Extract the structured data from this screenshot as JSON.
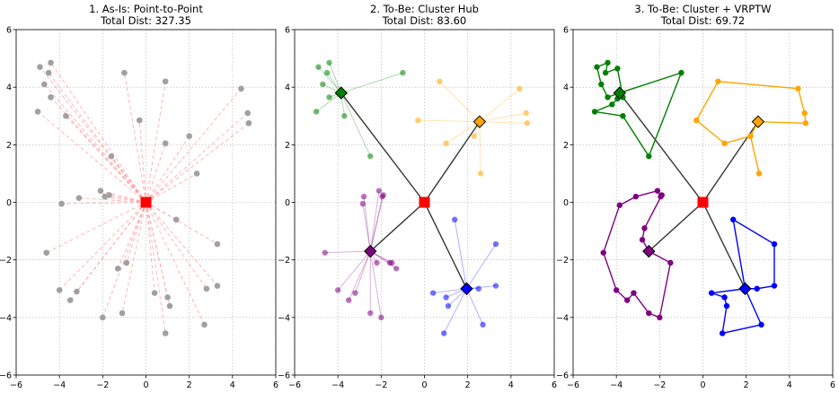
{
  "chart_data": [
    {
      "type": "scatter",
      "title": "1. As-Is: Point-to-Point",
      "subtitle": "Total Dist: 327.35",
      "xlabel": "",
      "ylabel": "",
      "xlim": [
        -6,
        6
      ],
      "ylim": [
        -6,
        6
      ],
      "xticks": [
        -6,
        -4,
        -2,
        0,
        2,
        4,
        6
      ],
      "yticks": [
        -6,
        -4,
        -2,
        0,
        2,
        4,
        6
      ],
      "grid": true,
      "depot": {
        "x": 0,
        "y": 0
      },
      "customers": [
        [
          -4.9,
          4.7
        ],
        [
          -4.4,
          4.85
        ],
        [
          -4.5,
          4.5
        ],
        [
          -4.7,
          4.1
        ],
        [
          -4.4,
          3.65
        ],
        [
          -5.0,
          3.15
        ],
        [
          -3.7,
          3.0
        ],
        [
          -1.0,
          4.5
        ],
        [
          0.9,
          4.2
        ],
        [
          -0.3,
          2.85
        ],
        [
          0.9,
          2.05
        ],
        [
          -1.6,
          1.6
        ],
        [
          4.4,
          3.95
        ],
        [
          4.7,
          3.1
        ],
        [
          4.75,
          2.75
        ],
        [
          2.0,
          2.3
        ],
        [
          2.35,
          1.0
        ],
        [
          -1.7,
          0.25
        ],
        [
          -1.9,
          0.2
        ],
        [
          -2.1,
          0.4
        ],
        [
          -3.1,
          0.15
        ],
        [
          -3.9,
          -0.05
        ],
        [
          -4.6,
          -1.75
        ],
        [
          -4.0,
          -3.05
        ],
        [
          -3.2,
          -3.1
        ],
        [
          -3.5,
          -3.4
        ],
        [
          -1.3,
          -2.3
        ],
        [
          -0.9,
          -2.1
        ],
        [
          -1.1,
          -3.85
        ],
        [
          -2.0,
          -4.0
        ],
        [
          1.4,
          -0.6
        ],
        [
          3.3,
          -1.45
        ],
        [
          3.3,
          -2.9
        ],
        [
          2.8,
          -3.0
        ],
        [
          0.4,
          -3.15
        ],
        [
          1.0,
          -3.3
        ],
        [
          1.1,
          -3.6
        ],
        [
          2.7,
          -4.25
        ],
        [
          0.9,
          -4.55
        ]
      ],
      "colors": {
        "customer": "#a0a0a0",
        "line": "#ff9999",
        "depot": "#ff0000"
      }
    },
    {
      "type": "scatter",
      "title": "2. To-Be: Cluster Hub",
      "subtitle": "Total Dist: 83.60",
      "xlabel": "",
      "ylabel": "",
      "xlim": [
        -6,
        6
      ],
      "ylim": [
        -6,
        6
      ],
      "xticks": [
        -6,
        -4,
        -2,
        0,
        2,
        4,
        6
      ],
      "yticks": [
        -6,
        -4,
        -2,
        0,
        2,
        4,
        6
      ],
      "grid": true,
      "depot": {
        "x": 0,
        "y": 0
      },
      "clusters": [
        {
          "color": "#008000",
          "hub": [
            -3.85,
            3.8
          ],
          "points": [
            [
              -4.9,
              4.7
            ],
            [
              -4.4,
              4.85
            ],
            [
              -4.5,
              4.5
            ],
            [
              -4.7,
              4.1
            ],
            [
              -4.4,
              3.65
            ],
            [
              -5.0,
              3.15
            ],
            [
              -3.7,
              3.0
            ],
            [
              -1.0,
              4.5
            ],
            [
              -2.5,
              1.6
            ]
          ]
        },
        {
          "color": "#ffa500",
          "hub": [
            2.55,
            2.8
          ],
          "points": [
            [
              0.7,
              4.2
            ],
            [
              4.4,
              3.95
            ],
            [
              4.7,
              3.1
            ],
            [
              4.75,
              2.75
            ],
            [
              -0.3,
              2.85
            ],
            [
              1.0,
              2.05
            ],
            [
              2.3,
              2.3
            ],
            [
              2.6,
              1.0
            ]
          ]
        },
        {
          "color": "#800080",
          "hub": [
            -2.5,
            -1.7
          ],
          "points": [
            [
              -2.1,
              0.4
            ],
            [
              -1.9,
              0.25
            ],
            [
              -1.95,
              0.2
            ],
            [
              -2.8,
              0.2
            ],
            [
              -2.85,
              -0.05
            ],
            [
              -4.6,
              -1.75
            ],
            [
              -4.0,
              -3.05
            ],
            [
              -3.2,
              -3.15
            ],
            [
              -3.5,
              -3.4
            ],
            [
              -2.2,
              -2.1
            ],
            [
              -1.6,
              -2.1
            ],
            [
              -2.5,
              -3.85
            ],
            [
              -2.0,
              -4.0
            ],
            [
              -1.3,
              -2.3
            ],
            [
              -1.5,
              -2.1
            ]
          ]
        },
        {
          "color": "#0000ff",
          "hub": [
            1.95,
            -3.0
          ],
          "points": [
            [
              1.4,
              -0.6
            ],
            [
              3.3,
              -1.45
            ],
            [
              3.3,
              -2.9
            ],
            [
              2.5,
              -3.0
            ],
            [
              0.4,
              -3.15
            ],
            [
              1.0,
              -3.3
            ],
            [
              1.1,
              -3.6
            ],
            [
              2.7,
              -4.25
            ],
            [
              0.9,
              -4.55
            ]
          ]
        }
      ],
      "colors": {
        "trunk": "#333333",
        "depot": "#ff0000"
      }
    },
    {
      "type": "line",
      "title": "3. To-Be: Cluster + VRPTW",
      "subtitle": "Total Dist: 69.72",
      "xlabel": "",
      "ylabel": "",
      "xlim": [
        -6,
        6
      ],
      "ylim": [
        -6,
        6
      ],
      "xticks": [
        -6,
        -4,
        -2,
        0,
        2,
        4,
        6
      ],
      "yticks": [
        -6,
        -4,
        -2,
        0,
        2,
        4,
        6
      ],
      "grid": true,
      "depot": {
        "x": 0,
        "y": 0
      },
      "routes": [
        {
          "color": "#008000",
          "hub": [
            -3.85,
            3.8
          ],
          "path": [
            [
              -3.85,
              3.8
            ],
            [
              -4.4,
              3.65
            ],
            [
              -4.7,
              4.1
            ],
            [
              -4.9,
              4.7
            ],
            [
              -4.4,
              4.85
            ],
            [
              -4.5,
              4.5
            ],
            [
              -3.95,
              4.65
            ],
            [
              -3.7,
              3.65
            ],
            [
              -3.95,
              3.6
            ],
            [
              -4.2,
              3.4
            ],
            [
              -5.0,
              3.15
            ],
            [
              -3.7,
              3.0
            ],
            [
              -2.5,
              1.6
            ],
            [
              -1.0,
              4.5
            ],
            [
              -3.85,
              3.8
            ]
          ]
        },
        {
          "color": "#ffa500",
          "hub": [
            2.55,
            2.8
          ],
          "path": [
            [
              2.55,
              2.8
            ],
            [
              2.2,
              2.3
            ],
            [
              2.6,
              1.0
            ],
            [
              2.2,
              2.3
            ],
            [
              2.55,
              2.8
            ],
            [
              4.75,
              2.75
            ],
            [
              4.7,
              3.1
            ],
            [
              4.4,
              3.95
            ],
            [
              0.7,
              4.2
            ],
            [
              -0.3,
              2.85
            ],
            [
              1.0,
              2.05
            ],
            [
              2.2,
              2.3
            ],
            [
              2.55,
              2.8
            ]
          ]
        },
        {
          "color": "#800080",
          "hub": [
            -2.5,
            -1.7
          ],
          "path": [
            [
              -2.5,
              -1.7
            ],
            [
              -1.5,
              -2.1
            ],
            [
              -2.0,
              -4.0
            ],
            [
              -2.5,
              -3.85
            ],
            [
              -3.2,
              -3.15
            ],
            [
              -3.5,
              -3.4
            ],
            [
              -4.0,
              -3.05
            ],
            [
              -4.6,
              -1.75
            ],
            [
              -3.85,
              -0.1
            ],
            [
              -3.1,
              0.2
            ],
            [
              -2.1,
              0.4
            ],
            [
              -1.95,
              0.2
            ],
            [
              -1.9,
              0.25
            ],
            [
              -2.7,
              -0.9
            ],
            [
              -2.8,
              -1.3
            ],
            [
              -2.5,
              -1.7
            ]
          ]
        },
        {
          "color": "#0000ff",
          "hub": [
            1.95,
            -3.0
          ],
          "path": [
            [
              1.95,
              -3.0
            ],
            [
              1.4,
              -0.6
            ],
            [
              3.3,
              -1.45
            ],
            [
              3.3,
              -2.9
            ],
            [
              2.5,
              -3.0
            ],
            [
              1.95,
              -3.0
            ],
            [
              0.4,
              -3.15
            ],
            [
              1.0,
              -3.3
            ],
            [
              1.1,
              -3.6
            ],
            [
              0.9,
              -4.55
            ],
            [
              2.7,
              -4.25
            ],
            [
              1.95,
              -3.0
            ]
          ]
        }
      ],
      "colors": {
        "trunk": "#333333",
        "depot": "#ff0000"
      }
    }
  ]
}
